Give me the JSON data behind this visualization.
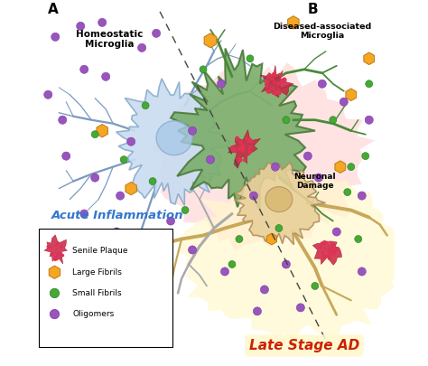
{
  "background_color": "#ffffff",
  "label_A": "A",
  "label_B": "B",
  "label_homeostatic": "Homeostatic\nMicroglia",
  "label_diseased": "Diseased-associated\nMicroglia",
  "label_acute": "Acute Inflammation",
  "label_late": "Late Stage AD",
  "label_neuronal": "Neuronal\nDamage",
  "homeostatic_body_color": "#c8dcf0",
  "homeostatic_body_edge": "#8aaccf",
  "homeostatic_nucleus_color": "#a8c8e8",
  "homeostatic_branch_color": "#7a9abf",
  "diseased_body_color": "#7aae6a",
  "diseased_body_edge": "#4a7a3a",
  "diseased_branch_color": "#4a8a3a",
  "neuronal_body_color": "#e8d09a",
  "neuronal_body_edge": "#b09060",
  "neuronal_nucleus_color": "#d8b870",
  "neuronal_branch_color": "#c8a858",
  "neuronal_outline_color": "#aaaaaa",
  "inflammation_pink": "#ffcccc",
  "late_yellow": "#fff8cc",
  "senile_color": "#cc2244",
  "senile_inner": "#dd3355",
  "large_fibril_color": "#f5a623",
  "large_fibril_edge": "#c07818",
  "small_fibril_color": "#44aa33",
  "oligomer_color": "#9955bb"
}
